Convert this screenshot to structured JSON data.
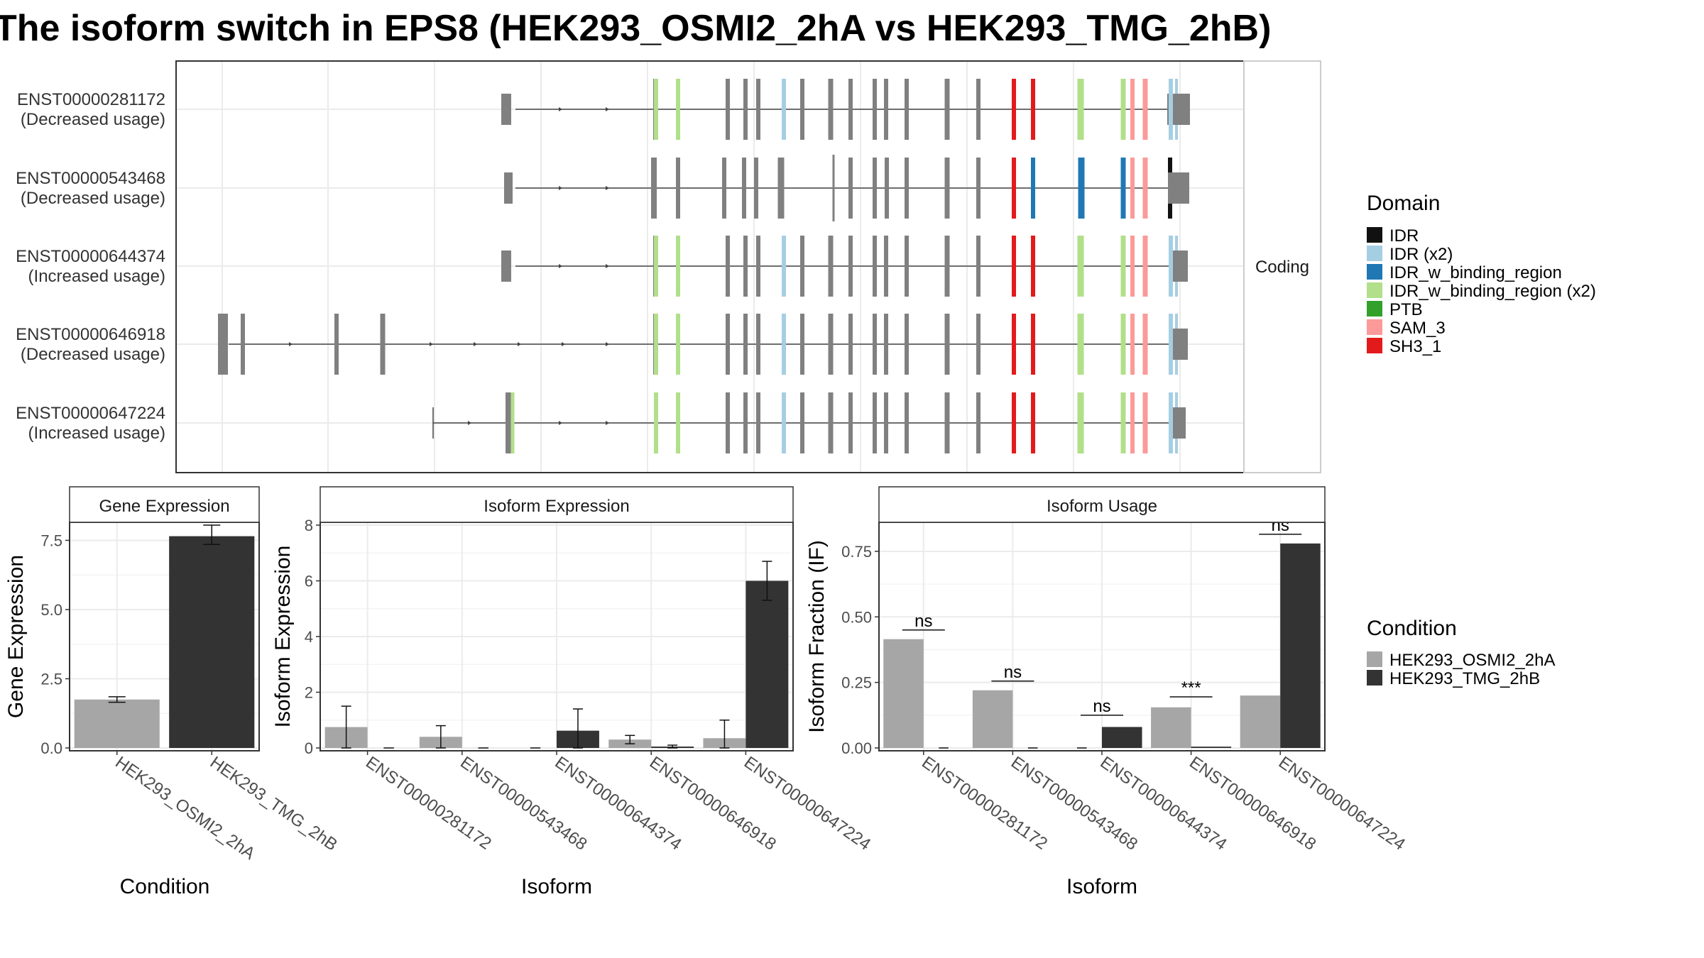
{
  "title": "The isoform switch in EPS8 (HEK293_OSMI2_2hA vs HEK293_TMG_2hB)",
  "colors": {
    "cond_A": "#a6a6a6",
    "cond_B": "#333333",
    "exon": "#808080",
    "intron": "#444444",
    "frame": "#333333",
    "grid": "#ebebeb",
    "strip_bg": "#ffffff"
  },
  "domain_legend": {
    "title": "Domain",
    "items": [
      {
        "label": "IDR",
        "color": "#111111"
      },
      {
        "label": "IDR (x2)",
        "color": "#a6cee3"
      },
      {
        "label": "IDR_w_binding_region",
        "color": "#1f78b4"
      },
      {
        "label": "IDR_w_binding_region (x2)",
        "color": "#b2df8a"
      },
      {
        "label": "PTB",
        "color": "#33a02c"
      },
      {
        "label": "SAM_3",
        "color": "#fb9a99"
      },
      {
        "label": "SH3_1",
        "color": "#e31a1c"
      }
    ]
  },
  "condition_legend": {
    "title": "Condition",
    "items": [
      {
        "label": "HEK293_OSMI2_2hA",
        "color": "#a6a6a6"
      },
      {
        "label": "HEK293_TMG_2hB",
        "color": "#333333"
      }
    ]
  },
  "structure": {
    "strip_label": "Coding",
    "transcripts": [
      {
        "id": "ENST00000281172",
        "usage": "(Decreased usage)"
      },
      {
        "id": "ENST00000543468",
        "usage": "(Decreased usage)"
      },
      {
        "id": "ENST00000644374",
        "usage": "(Increased usage)"
      },
      {
        "id": "ENST00000646918",
        "usage": "(Decreased usage)"
      },
      {
        "id": "ENST00000647224",
        "usage": "(Increased usage)"
      }
    ]
  },
  "chart_data": [
    {
      "type": "bar",
      "panel_title": "Gene Expression",
      "xlabel": "Condition",
      "ylabel": "Gene Expression",
      "categories": [
        "HEK293_OSMI2_2hA",
        "HEK293_TMG_2hB"
      ],
      "values": [
        1.75,
        7.65
      ],
      "errors": [
        [
          1.65,
          1.85
        ],
        [
          7.35,
          8.05
        ]
      ],
      "ylim": [
        0,
        8.05
      ],
      "yticks": [
        "0.0",
        "2.5",
        "5.0",
        "7.5"
      ],
      "ytick_values": [
        0,
        2.5,
        5.0,
        7.5
      ],
      "grid": true
    },
    {
      "type": "bar",
      "panel_title": "Isoform Expression",
      "xlabel": "Isoform",
      "ylabel": "Isoform Expression",
      "categories": [
        "ENST00000281172",
        "ENST00000543468",
        "ENST00000644374",
        "ENST00000646918",
        "ENST00000647224"
      ],
      "series": [
        {
          "name": "HEK293_OSMI2_2hA",
          "values": [
            0.75,
            0.4,
            0.0,
            0.3,
            0.35
          ],
          "errors": [
            [
              0,
              1.5
            ],
            [
              0,
              0.8
            ],
            [
              0,
              0
            ],
            [
              0.15,
              0.45
            ],
            [
              0,
              1.0
            ]
          ]
        },
        {
          "name": "HEK293_TMG_2hB",
          "values": [
            0.0,
            0.0,
            0.62,
            0.05,
            6.0
          ],
          "errors": [
            [
              0,
              0
            ],
            [
              0,
              0
            ],
            [
              0,
              1.4
            ],
            [
              0,
              0.1
            ],
            [
              5.3,
              6.7
            ]
          ]
        }
      ],
      "ylim": [
        0,
        8
      ],
      "yticks": [
        "0",
        "2",
        "4",
        "6",
        "8"
      ],
      "ytick_values": [
        0,
        2,
        4,
        6,
        8
      ],
      "grid": true
    },
    {
      "type": "bar",
      "panel_title": "Isoform Usage",
      "xlabel": "Isoform",
      "ylabel": "Isoform Fraction (IF)",
      "categories": [
        "ENST00000281172",
        "ENST00000543468",
        "ENST00000644374",
        "ENST00000646918",
        "ENST00000647224"
      ],
      "series": [
        {
          "name": "HEK293_OSMI2_2hA",
          "values": [
            0.415,
            0.22,
            0.0,
            0.155,
            0.2
          ]
        },
        {
          "name": "HEK293_TMG_2hB",
          "values": [
            0.0,
            0.0,
            0.08,
            0.005,
            0.78
          ]
        }
      ],
      "significance": [
        "ns",
        "ns",
        "ns",
        "***",
        "ns"
      ],
      "significance_y": [
        0.45,
        0.255,
        0.125,
        0.195,
        0.815
      ],
      "ylim": [
        0,
        0.85
      ],
      "yticks": [
        "0.00",
        "0.25",
        "0.50",
        "0.75"
      ],
      "ytick_values": [
        0,
        0.25,
        0.5,
        0.75
      ],
      "grid": true
    }
  ]
}
